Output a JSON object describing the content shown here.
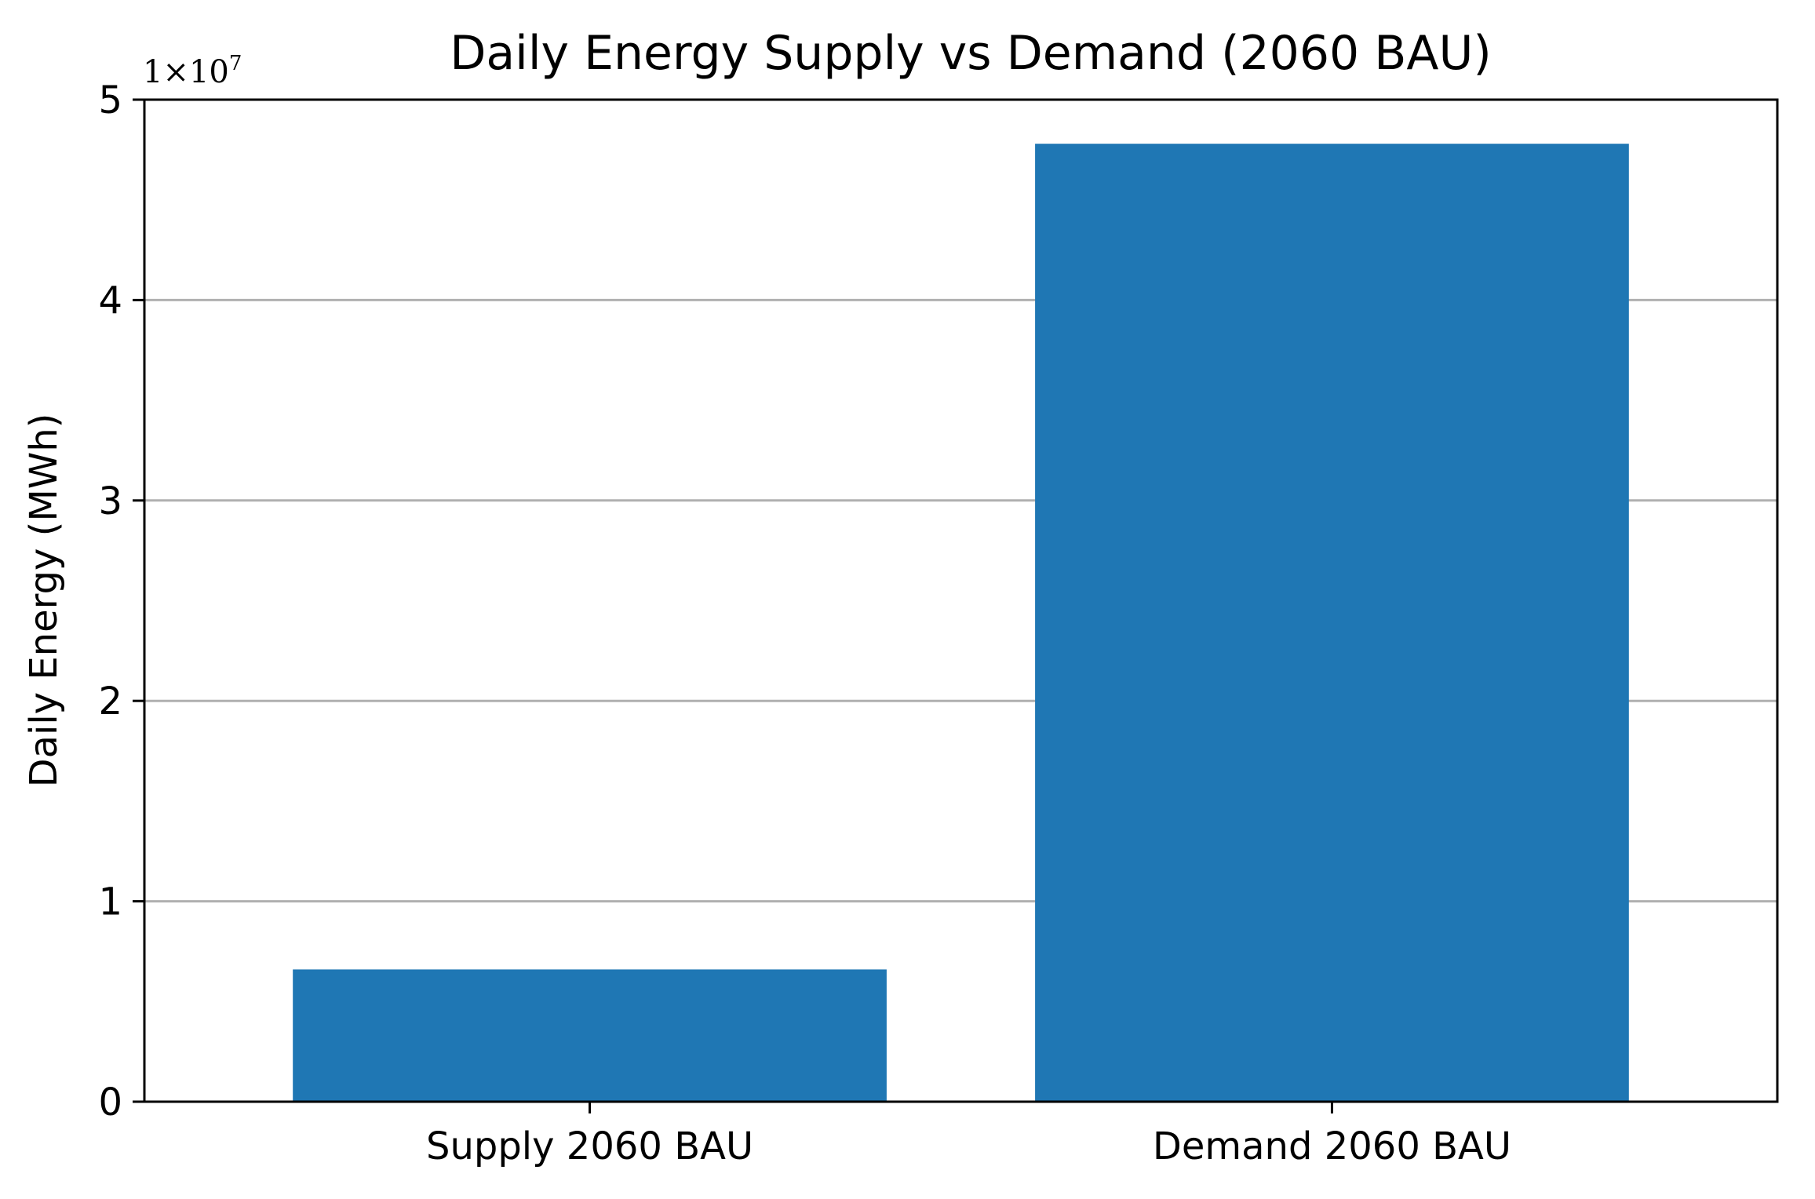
{
  "chart_data": {
    "type": "bar",
    "title": "Daily Energy Supply vs Demand (2060 BAU)",
    "xlabel": "",
    "ylabel": "Daily Energy (MWh)",
    "categories": [
      "Supply 2060 BAU",
      "Demand 2060 BAU"
    ],
    "values": [
      6600000,
      47800000
    ],
    "ylim": [
      0,
      50000000
    ],
    "yticks": [
      0,
      1,
      2,
      3,
      4,
      5
    ],
    "yticks_scale": 10000000,
    "scale_label_base": "1×10",
    "scale_label_exponent": "7",
    "bar_color": "#1f77b4",
    "grid": "y-major",
    "legend": "none"
  }
}
